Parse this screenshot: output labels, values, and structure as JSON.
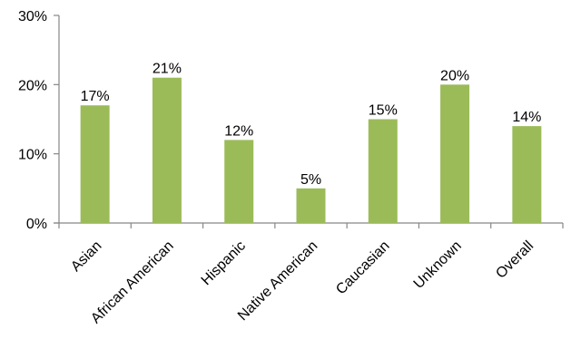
{
  "chart_data": {
    "type": "bar",
    "categories": [
      "Asian",
      "African American",
      "Hispanic",
      "Native American",
      "Caucasian",
      "Unknown",
      "Overall"
    ],
    "values": [
      17,
      21,
      12,
      5,
      15,
      20,
      14
    ],
    "value_labels": [
      "17%",
      "21%",
      "12%",
      "5%",
      "15%",
      "20%",
      "14%"
    ],
    "y_ticks": [
      0,
      10,
      20,
      30
    ],
    "y_tick_labels": [
      "0%",
      "10%",
      "20%",
      "30%"
    ],
    "ylim": [
      0,
      30
    ],
    "grid": false,
    "legend": "none",
    "bar_color": "#9BBB59",
    "axis_color": "#878787"
  }
}
